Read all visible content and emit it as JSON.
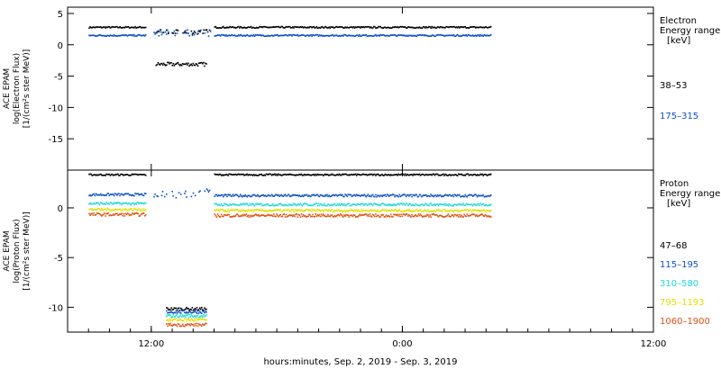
{
  "chart_data": [
    {
      "type": "scatter",
      "ylabel_lines": [
        "ACE EPAM",
        "log(Electron Flux)",
        "[1/(cm²s ster MeV)]"
      ],
      "ylim": [
        -20,
        6
      ],
      "yticks": [
        5,
        0,
        -5,
        -10,
        -15
      ],
      "legend_title": [
        "Electron",
        "Energy range",
        "[keV]"
      ],
      "series": [
        {
          "name": "38–53",
          "color": "#000000",
          "segments": [
            {
              "x": [
                -15.0,
                -12.3
              ],
              "y": [
                2.9,
                2.9
              ],
              "noise": 0.12
            },
            {
              "x": [
                -11.9,
                -9.2
              ],
              "y": [
                2.2,
                2.2
              ],
              "noise": 0.35
            },
            {
              "x": [
                -11.8,
                -9.4
              ],
              "y": [
                -3.0,
                -3.0
              ],
              "noise": 0.3
            },
            {
              "x": [
                -9.0,
                4.2
              ],
              "y": [
                2.9,
                2.9
              ],
              "noise": 0.12
            }
          ]
        },
        {
          "name": "175–315",
          "color": "#0a50c8",
          "segments": [
            {
              "x": [
                -15.0,
                -12.3
              ],
              "y": [
                1.6,
                1.6
              ],
              "noise": 0.12
            },
            {
              "x": [
                -11.9,
                -9.2
              ],
              "y": [
                2.0,
                2.0
              ],
              "noise": 0.5
            },
            {
              "x": [
                -9.0,
                4.2
              ],
              "y": [
                1.6,
                1.6
              ],
              "noise": 0.12
            }
          ]
        }
      ]
    },
    {
      "type": "scatter",
      "ylabel_lines": [
        "ACE EPAM",
        "log(Proton Flux)",
        "[1/(cm²s ster MeV)]"
      ],
      "ylim": [
        -12.5,
        3.8
      ],
      "yticks": [
        0,
        -5,
        -10
      ],
      "legend_title": [
        "Proton",
        "Energy range",
        "[keV]"
      ],
      "series": [
        {
          "name": "47–68",
          "color": "#000000",
          "segments": [
            {
              "x": [
                -15.0,
                -12.3
              ],
              "y": [
                3.4,
                3.4
              ],
              "noise": 0.08
            },
            {
              "x": [
                -11.3,
                -9.4
              ],
              "y": [
                -10.1,
                -10.1
              ],
              "noise": 0.15
            },
            {
              "x": [
                -9.0,
                4.2
              ],
              "y": [
                3.4,
                3.4
              ],
              "noise": 0.08
            }
          ]
        },
        {
          "name": "115–195",
          "color": "#0a50c8",
          "segments": [
            {
              "x": [
                -15.0,
                -12.3
              ],
              "y": [
                1.4,
                1.4
              ],
              "noise": 0.12
            },
            {
              "x": [
                -11.9,
                -9.2
              ],
              "y": [
                1.5,
                1.5
              ],
              "noise": 0.5
            },
            {
              "x": [
                -11.3,
                -9.4
              ],
              "y": [
                -10.4,
                -10.4
              ],
              "noise": 0.15
            },
            {
              "x": [
                -9.0,
                4.2
              ],
              "y": [
                1.3,
                1.3
              ],
              "noise": 0.12
            }
          ]
        },
        {
          "name": "310–580",
          "color": "#20d8d8",
          "segments": [
            {
              "x": [
                -15.0,
                -12.3
              ],
              "y": [
                0.5,
                0.5
              ],
              "noise": 0.12
            },
            {
              "x": [
                -11.3,
                -9.4
              ],
              "y": [
                -10.8,
                -10.8
              ],
              "noise": 0.15
            },
            {
              "x": [
                -9.0,
                4.2
              ],
              "y": [
                0.4,
                0.4
              ],
              "noise": 0.12
            }
          ]
        },
        {
          "name": "795–1193",
          "color": "#e0e000",
          "segments": [
            {
              "x": [
                -15.0,
                -12.3
              ],
              "y": [
                -0.1,
                -0.1
              ],
              "noise": 0.12
            },
            {
              "x": [
                -11.3,
                -9.4
              ],
              "y": [
                -11.2,
                -11.2
              ],
              "noise": 0.15
            },
            {
              "x": [
                -9.0,
                4.2
              ],
              "y": [
                -0.2,
                -0.2
              ],
              "noise": 0.12
            }
          ]
        },
        {
          "name": "1060–1900",
          "color": "#e05010",
          "segments": [
            {
              "x": [
                -15.0,
                -12.3
              ],
              "y": [
                -0.6,
                -0.6
              ],
              "noise": 0.15
            },
            {
              "x": [
                -11.3,
                -9.4
              ],
              "y": [
                -11.7,
                -11.7
              ],
              "noise": 0.15
            },
            {
              "x": [
                -9.0,
                4.2
              ],
              "y": [
                -0.7,
                -0.7
              ],
              "noise": 0.15
            }
          ]
        }
      ]
    }
  ],
  "xaxis": {
    "range_hours": [
      -16,
      12
    ],
    "ticks": [
      {
        "v": -12,
        "label": "12:00"
      },
      {
        "v": 0,
        "label": "0:00"
      },
      {
        "v": 12,
        "label": "12:00"
      }
    ],
    "title": "hours:minutes, Sep.  2, 2019 - Sep.  3, 2019"
  }
}
